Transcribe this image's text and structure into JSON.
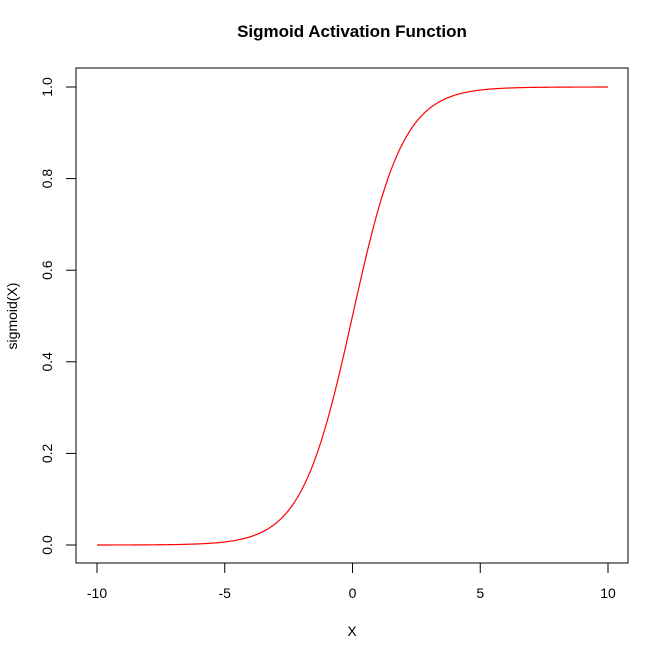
{
  "chart_data": {
    "type": "line",
    "title": "Sigmoid Activation Function",
    "xlabel": "X",
    "ylabel": "sigmoid(X)",
    "xlim": [
      -10,
      10
    ],
    "ylim": [
      0,
      1
    ],
    "x_ticks": [
      -10,
      -5,
      0,
      5,
      10
    ],
    "x_tick_labels": [
      "-10",
      "-5",
      "0",
      "5",
      "10"
    ],
    "y_ticks": [
      0.0,
      0.2,
      0.4,
      0.6,
      0.8,
      1.0
    ],
    "y_tick_labels": [
      "0.0",
      "0.2",
      "0.4",
      "0.6",
      "0.8",
      "1.0"
    ],
    "grid": false,
    "legend": null,
    "series": [
      {
        "name": "sigmoid(X)",
        "color": "#ff0000",
        "function": "1/(1+exp(-x))",
        "x": [
          -10,
          -8,
          -6,
          -5,
          -4,
          -3,
          -2,
          -1,
          0,
          1,
          2,
          3,
          4,
          5,
          6,
          8,
          10
        ],
        "y": [
          0.0,
          0.0003,
          0.0025,
          0.0067,
          0.018,
          0.0474,
          0.1192,
          0.2689,
          0.5,
          0.7311,
          0.8808,
          0.9526,
          0.982,
          0.9933,
          0.9975,
          0.9997,
          1.0
        ]
      }
    ]
  }
}
